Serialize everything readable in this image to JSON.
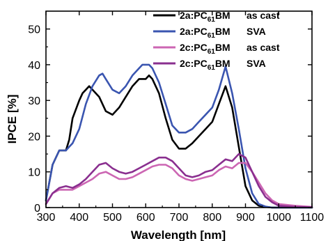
{
  "chart_data": {
    "type": "line",
    "xlabel": "Wavelength [nm]",
    "ylabel": "IPCE [%]",
    "xlim": [
      300,
      1100
    ],
    "ylim": [
      0,
      55
    ],
    "xticks": [
      300,
      400,
      500,
      600,
      700,
      800,
      900,
      1000,
      1100
    ],
    "yticks": [
      0,
      10,
      20,
      30,
      40,
      50
    ],
    "grid": false,
    "legend_position": "top-right",
    "series": [
      {
        "label_main": "2a:PC",
        "label_sub": "61",
        "label_tail": "BM",
        "condition": "as cast",
        "color": "#000000",
        "x": [
          300,
          320,
          340,
          360,
          370,
          380,
          400,
          410,
          420,
          430,
          440,
          460,
          480,
          500,
          520,
          540,
          560,
          580,
          600,
          610,
          620,
          640,
          660,
          680,
          700,
          720,
          740,
          760,
          780,
          800,
          820,
          840,
          860,
          880,
          900,
          920,
          940,
          960,
          980,
          1000,
          1050,
          1100
        ],
        "y": [
          2,
          12,
          16,
          16,
          19,
          25,
          30,
          32,
          33,
          34,
          33,
          31,
          27,
          26,
          28,
          31,
          34,
          36,
          36,
          37,
          36,
          32,
          25,
          19,
          16.5,
          16.5,
          18,
          20,
          22,
          24,
          29,
          34,
          28,
          17,
          6,
          2,
          0.5,
          0.2,
          0,
          0,
          0,
          0
        ]
      },
      {
        "label_main": "2a:PC",
        "label_sub": "61",
        "label_tail": "BM",
        "condition": "SVA",
        "color": "#3a55b0",
        "x": [
          300,
          320,
          340,
          360,
          370,
          380,
          400,
          420,
          440,
          460,
          470,
          480,
          500,
          520,
          540,
          560,
          580,
          590,
          600,
          610,
          620,
          640,
          660,
          680,
          700,
          720,
          740,
          760,
          780,
          800,
          820,
          840,
          860,
          880,
          900,
          920,
          940,
          960,
          980,
          1000,
          1050,
          1100
        ],
        "y": [
          2,
          12,
          16,
          16,
          17,
          18,
          22,
          29,
          34,
          37,
          37.5,
          36,
          33,
          32,
          34,
          37,
          39,
          40,
          40,
          40,
          39,
          35,
          29,
          23,
          21,
          21,
          22,
          24,
          26,
          28,
          33,
          39.5,
          32,
          22,
          11,
          4,
          1,
          0.3,
          0,
          0,
          0,
          0
        ]
      },
      {
        "label_main": "2c:PC",
        "label_sub": "61",
        "label_tail": "BM",
        "condition": "as cast",
        "color": "#cc66b3",
        "x": [
          300,
          320,
          340,
          360,
          380,
          400,
          420,
          440,
          460,
          480,
          500,
          520,
          540,
          560,
          580,
          600,
          620,
          640,
          660,
          680,
          700,
          720,
          740,
          760,
          780,
          800,
          820,
          840,
          860,
          880,
          900,
          920,
          940,
          960,
          980,
          1000,
          1050,
          1100
        ],
        "y": [
          1,
          4,
          5,
          5,
          5,
          6,
          7,
          8,
          9.5,
          10,
          9,
          8,
          8,
          8.5,
          9.5,
          10.5,
          11.5,
          12,
          12,
          11,
          9,
          8,
          7.5,
          8,
          8.5,
          9,
          10.5,
          11.5,
          11,
          12.5,
          12.5,
          10,
          7,
          4,
          2,
          1,
          0.5,
          0.2
        ]
      },
      {
        "label_main": "2c:PC",
        "label_sub": "61",
        "label_tail": "BM",
        "condition": "SVA",
        "color": "#8a2f8f",
        "x": [
          300,
          320,
          340,
          360,
          380,
          400,
          420,
          440,
          460,
          480,
          500,
          520,
          540,
          560,
          580,
          600,
          620,
          640,
          660,
          680,
          700,
          720,
          740,
          760,
          780,
          800,
          820,
          840,
          860,
          880,
          900,
          920,
          940,
          960,
          980,
          1000,
          1050,
          1100
        ],
        "y": [
          1,
          4,
          5.5,
          6,
          5.5,
          6.5,
          8,
          10,
          12,
          12.5,
          11,
          10,
          9.5,
          10,
          11,
          12,
          13,
          14,
          14,
          13,
          11,
          9,
          8.5,
          9,
          10,
          10.5,
          12,
          13.5,
          13,
          15,
          14,
          10,
          6,
          3,
          1.5,
          0.5,
          0.2,
          0.1
        ]
      }
    ]
  }
}
